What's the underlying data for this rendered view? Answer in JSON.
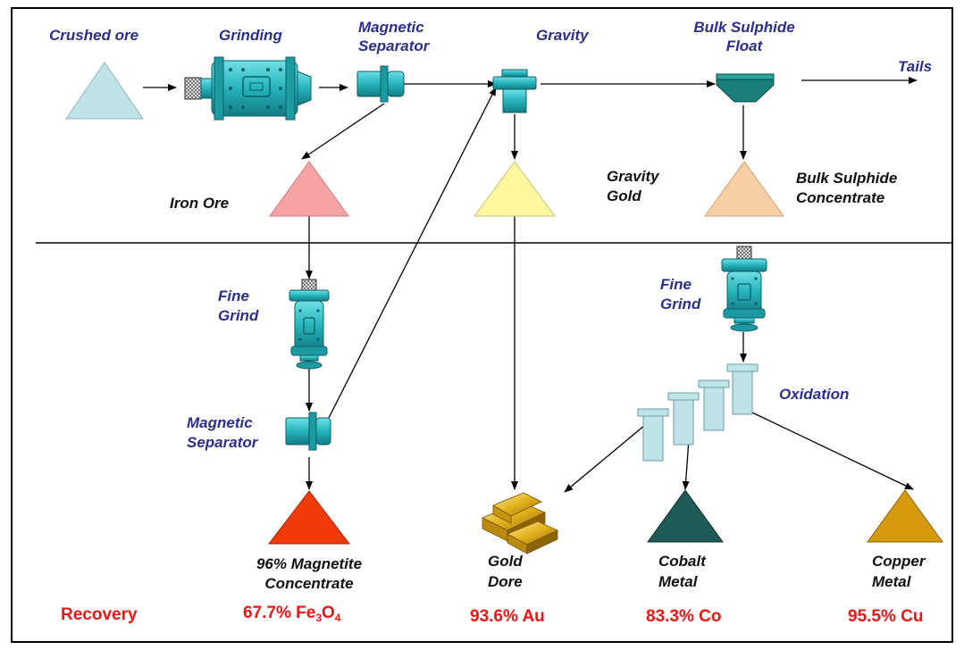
{
  "stages": {
    "crushed_ore": "Crushed ore",
    "grinding": "Grinding",
    "magnetic_separator_1_l1": "Magnetic",
    "magnetic_separator_1_l2": "Separator",
    "gravity": "Gravity",
    "bulk_float_l1": "Bulk Sulphide",
    "bulk_float_l2": "Float",
    "tails": "Tails",
    "iron_ore": "Iron Ore",
    "gravity_gold_l1": "Gravity",
    "gravity_gold_l2": "Gold",
    "bulk_conc_l1": "Bulk Sulphide",
    "bulk_conc_l2": "Concentrate",
    "fine_grind_left_l1": "Fine",
    "fine_grind_left_l2": "Grind",
    "fine_grind_right_l1": "Fine",
    "fine_grind_right_l2": "Grind",
    "oxidation": "Oxidation",
    "magnetic_separator_2_l1": "Magnetic",
    "magnetic_separator_2_l2": "Separator"
  },
  "products": {
    "magnetite_l1": "96% Magnetite",
    "magnetite_l2": "Concentrate",
    "gold_l1": "Gold",
    "gold_l2": "Dore",
    "cobalt_l1": "Cobalt",
    "cobalt_l2": "Metal",
    "copper_l1": "Copper",
    "copper_l2": "Metal"
  },
  "recovery": {
    "label": "Recovery",
    "fe_value": "67.7% Fe",
    "fe_sub1": "3",
    "fe_mid": "O",
    "fe_sub2": "4",
    "au": "93.6% Au",
    "co": "83.3% Co",
    "cu": "95.5% Cu"
  },
  "colors": {
    "teal": "#2bbcc4",
    "crushed_ore": "#bfe3e6",
    "iron_ore": "#f5a3a3",
    "gravity_gold": "#fdf8a0",
    "bulk_conc": "#f8cfa4",
    "magnetite": "#f03a0a",
    "cobalt": "#1f5a56",
    "copper": "#d59a0e",
    "recovery_red": "#f01414"
  }
}
